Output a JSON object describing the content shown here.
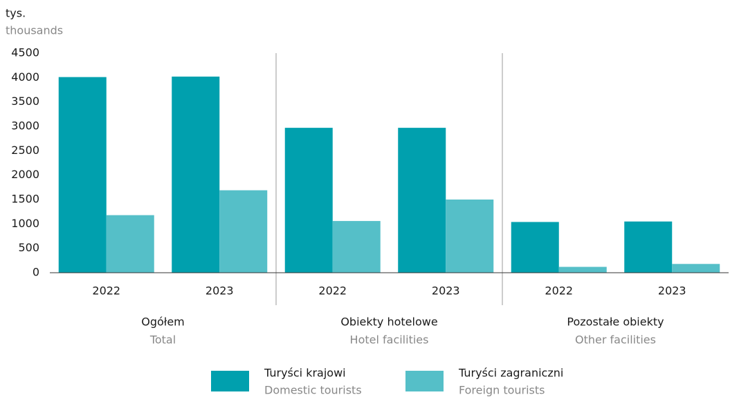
{
  "chart_data": {
    "type": "bar",
    "y_label": "tys.",
    "y_label_en": "thousands",
    "categories": [
      "2022",
      "2023",
      "2022",
      "2023",
      "2022",
      "2023"
    ],
    "groups": [
      {
        "name": "Ogółem",
        "name_en": "Total"
      },
      {
        "name": "Obiekty hotelowe",
        "name_en": "Hotel facilities"
      },
      {
        "name": "Pozostałe obiekty",
        "name_en": "Other facilities"
      }
    ],
    "series": [
      {
        "name": "Turyści krajowi",
        "name_en": "Domestic tourists",
        "color": "#00a0ae",
        "values": [
          4010,
          4020,
          2970,
          2970,
          1040,
          1050
        ]
      },
      {
        "name": "Turyści zagraniczni",
        "name_en": "Foreign tourists",
        "color": "#55bfc8",
        "values": [
          1180,
          1690,
          1060,
          1500,
          120,
          180
        ]
      }
    ],
    "ylim": [
      0,
      4500
    ],
    "yticks": [
      0,
      500,
      1000,
      1500,
      2000,
      2500,
      3000,
      3500,
      4000,
      4500
    ],
    "grid": false
  }
}
